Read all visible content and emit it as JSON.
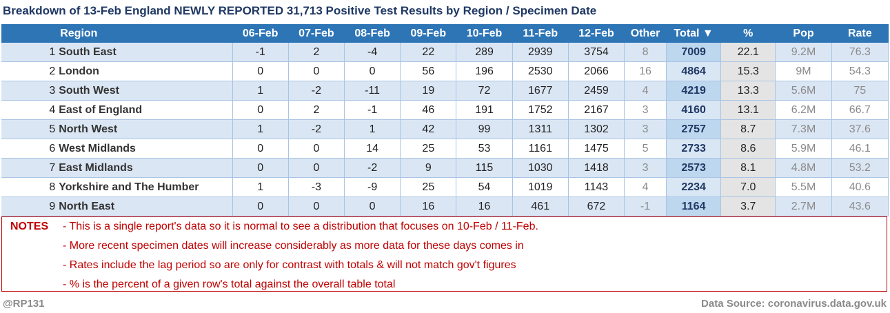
{
  "title": "Breakdown of 13-Feb England NEWLY REPORTED 31,713 Positive Test Results by Region / Specimen Date",
  "table": {
    "headers": [
      "",
      "Region",
      "06-Feb",
      "07-Feb",
      "08-Feb",
      "09-Feb",
      "10-Feb",
      "11-Feb",
      "12-Feb",
      "Other",
      "Total ▼",
      "%",
      "Pop",
      "Rate"
    ],
    "rows": [
      {
        "rank": "1",
        "region": "South East",
        "d06": "-1",
        "d07": "2",
        "d08": "-4",
        "d09": "22",
        "d10": "289",
        "d11": "2939",
        "d12": "3754",
        "other": "8",
        "total": "7009",
        "pct": "22.1",
        "pop": "9.2M",
        "rate": "76.3"
      },
      {
        "rank": "2",
        "region": "London",
        "d06": "0",
        "d07": "0",
        "d08": "0",
        "d09": "56",
        "d10": "196",
        "d11": "2530",
        "d12": "2066",
        "other": "16",
        "total": "4864",
        "pct": "15.3",
        "pop": "9M",
        "rate": "54.3"
      },
      {
        "rank": "3",
        "region": "South West",
        "d06": "1",
        "d07": "-2",
        "d08": "-11",
        "d09": "19",
        "d10": "72",
        "d11": "1677",
        "d12": "2459",
        "other": "4",
        "total": "4219",
        "pct": "13.3",
        "pop": "5.6M",
        "rate": "75"
      },
      {
        "rank": "4",
        "region": "East of England",
        "d06": "0",
        "d07": "2",
        "d08": "-1",
        "d09": "46",
        "d10": "191",
        "d11": "1752",
        "d12": "2167",
        "other": "3",
        "total": "4160",
        "pct": "13.1",
        "pop": "6.2M",
        "rate": "66.7"
      },
      {
        "rank": "5",
        "region": "North West",
        "d06": "1",
        "d07": "-2",
        "d08": "1",
        "d09": "42",
        "d10": "99",
        "d11": "1311",
        "d12": "1302",
        "other": "3",
        "total": "2757",
        "pct": "8.7",
        "pop": "7.3M",
        "rate": "37.6"
      },
      {
        "rank": "6",
        "region": "West Midlands",
        "d06": "0",
        "d07": "0",
        "d08": "14",
        "d09": "25",
        "d10": "53",
        "d11": "1161",
        "d12": "1475",
        "other": "5",
        "total": "2733",
        "pct": "8.6",
        "pop": "5.9M",
        "rate": "46.1"
      },
      {
        "rank": "7",
        "region": "East Midlands",
        "d06": "0",
        "d07": "0",
        "d08": "-2",
        "d09": "9",
        "d10": "115",
        "d11": "1030",
        "d12": "1418",
        "other": "3",
        "total": "2573",
        "pct": "8.1",
        "pop": "4.8M",
        "rate": "53.2"
      },
      {
        "rank": "8",
        "region": "Yorkshire and The Humber",
        "d06": "1",
        "d07": "-3",
        "d08": "-9",
        "d09": "25",
        "d10": "54",
        "d11": "1019",
        "d12": "1143",
        "other": "4",
        "total": "2234",
        "pct": "7.0",
        "pop": "5.5M",
        "rate": "40.6"
      },
      {
        "rank": "9",
        "region": "North East",
        "d06": "0",
        "d07": "0",
        "d08": "0",
        "d09": "16",
        "d10": "16",
        "d11": "461",
        "d12": "672",
        "other": "-1",
        "total": "1164",
        "pct": "3.7",
        "pop": "2.7M",
        "rate": "43.6"
      }
    ]
  },
  "notes": {
    "label": "NOTES",
    "lines": [
      "- This is a single report's data so it is normal to see a distribution that focuses on 10-Feb / 11-Feb.",
      "- More recent specimen dates will increase considerably as more data for these days comes in",
      "- Rates include the lag period so are only for contrast with totals & will not match gov't figures",
      "- % is the percent of a given row's total against the overall table total"
    ]
  },
  "footer": {
    "author": "@RP131",
    "source": "Data Source: coronavirus.data.gov.uk"
  },
  "colors": {
    "header_bg": "#2e75b6",
    "title": "#1f3864",
    "alt_row": "#dbe6f4",
    "notes": "#c00000"
  }
}
